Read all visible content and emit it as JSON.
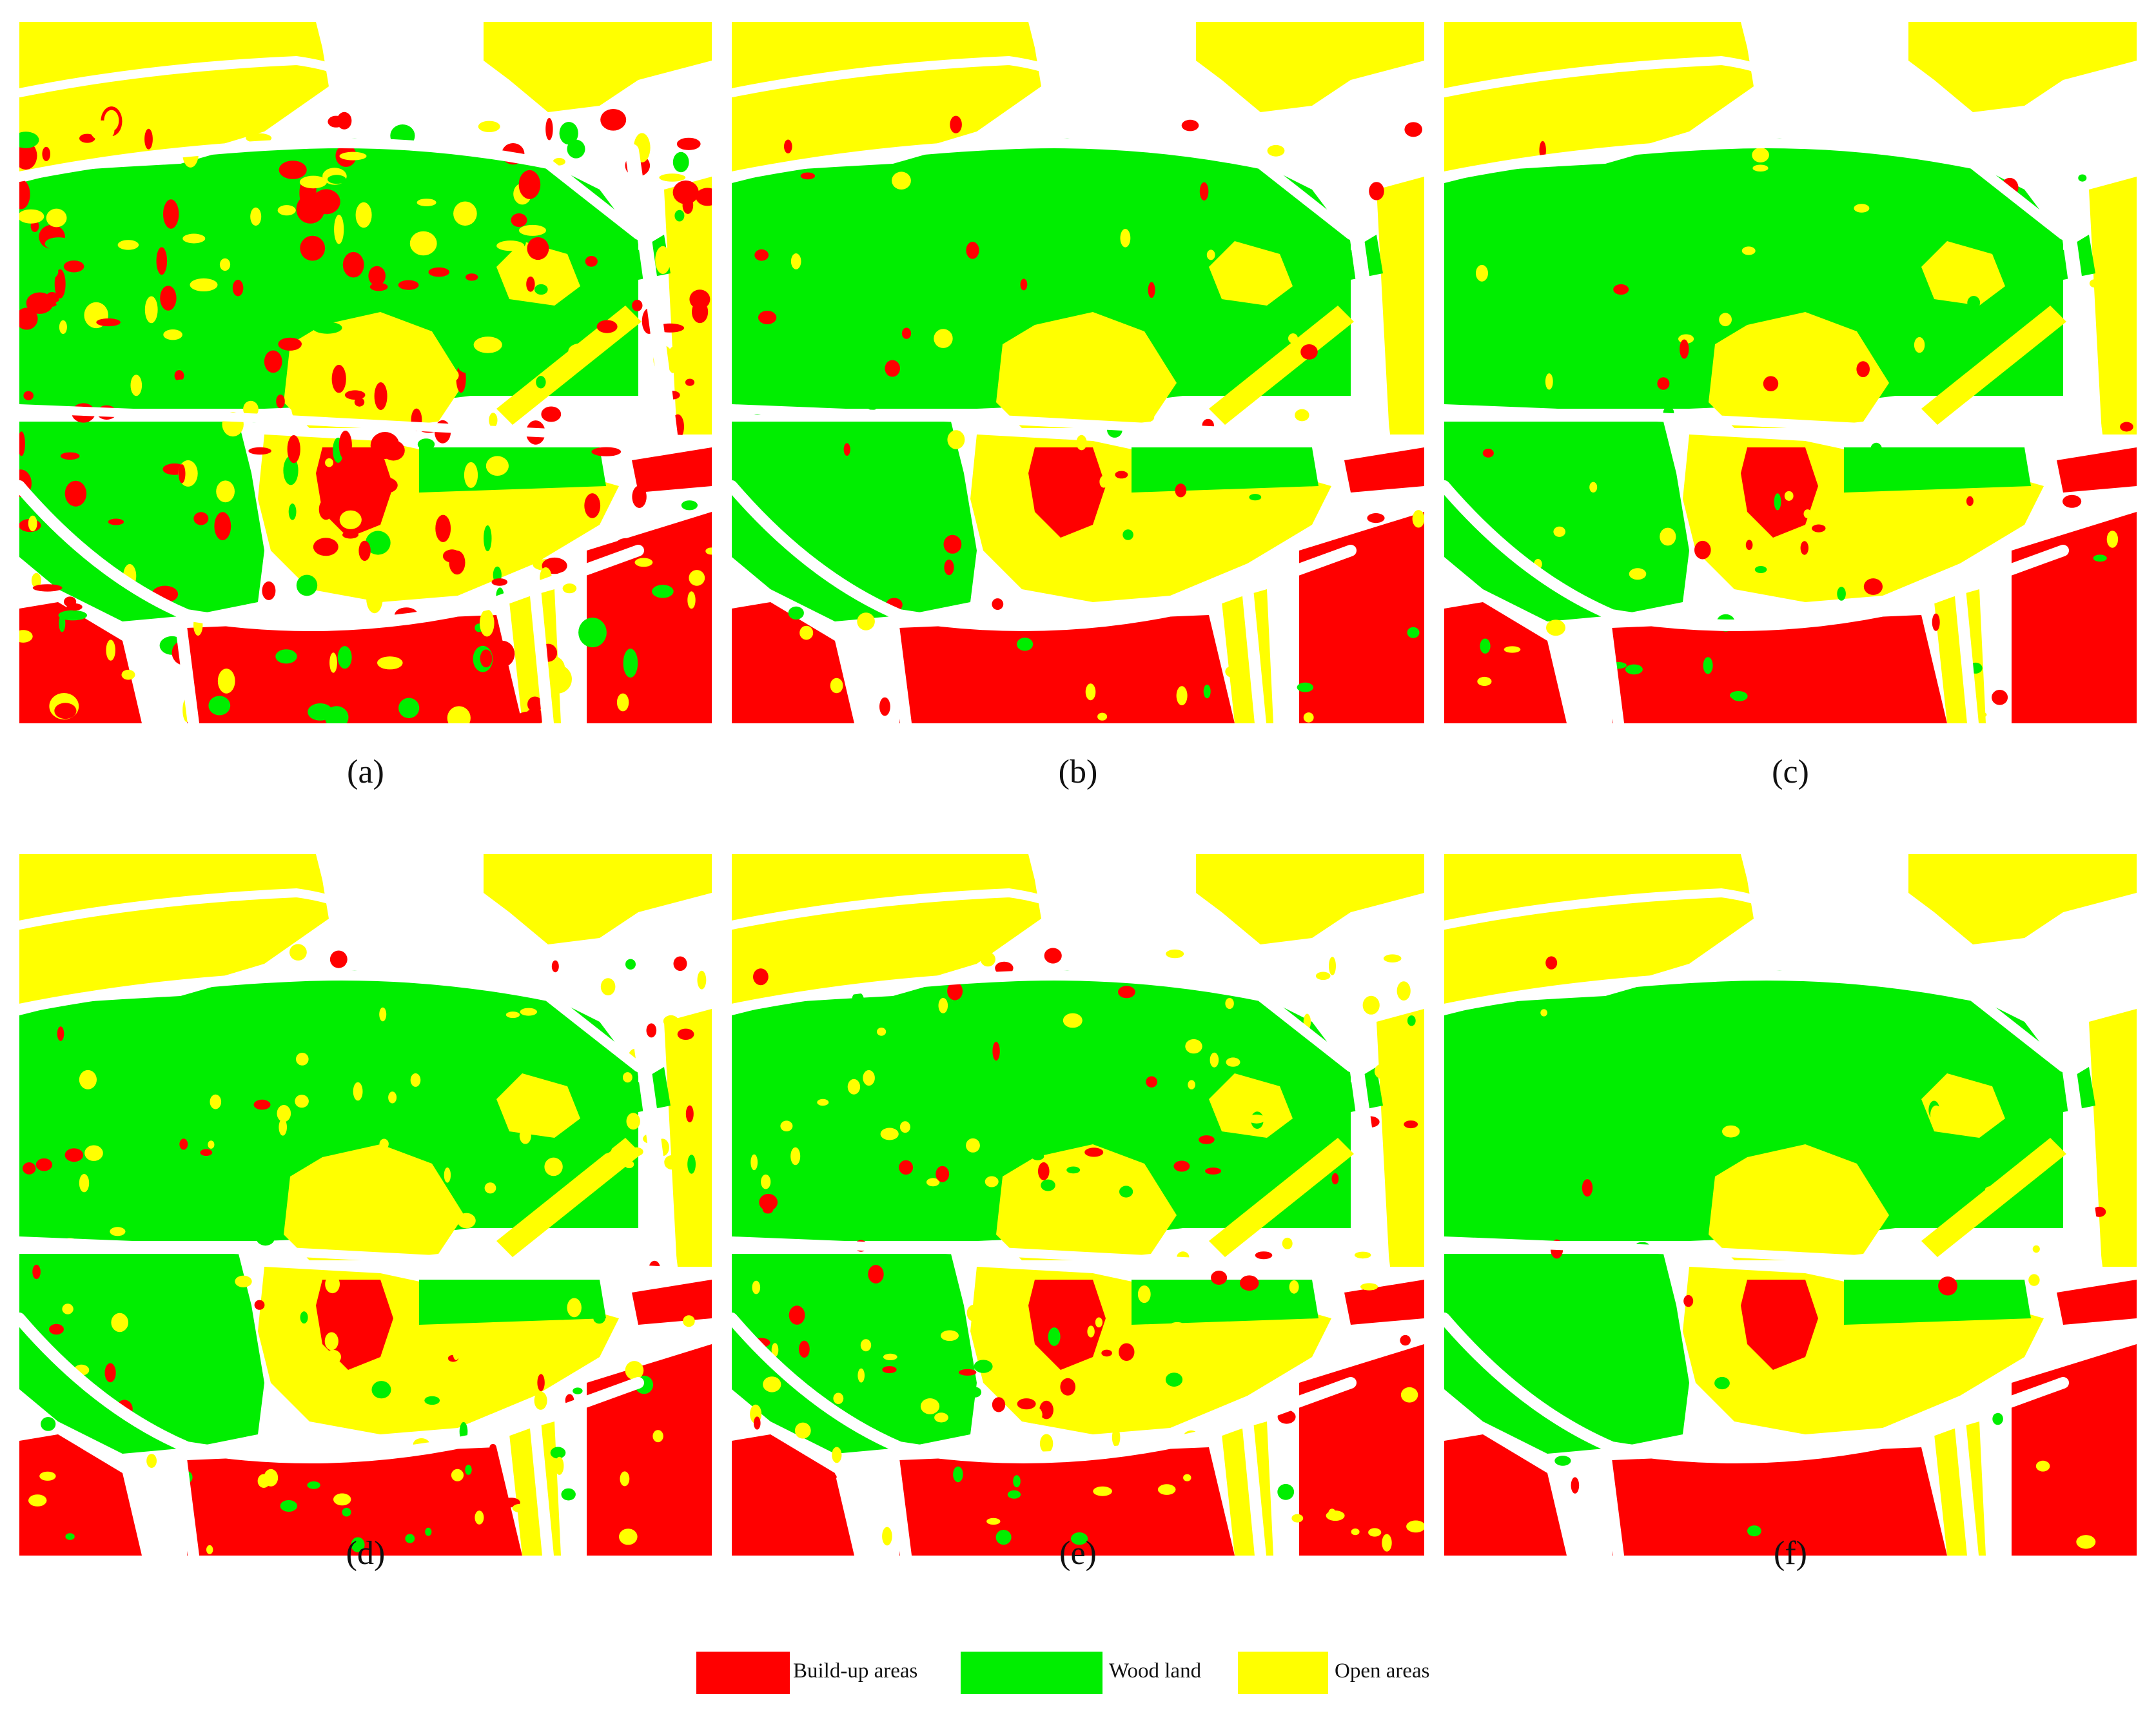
{
  "colors": {
    "build_up": "#ff0000",
    "wood": "#00ee00",
    "open": "#ffff00",
    "road": "#ffffff"
  },
  "panels": [
    {
      "label": "(a)",
      "noise": "high"
    },
    {
      "label": "(b)",
      "noise": "low"
    },
    {
      "label": "(c)",
      "noise": "low"
    },
    {
      "label": "(d)",
      "noise": "medium"
    },
    {
      "label": "(e)",
      "noise": "medium"
    },
    {
      "label": "(f)",
      "noise": "very-low"
    }
  ],
  "legend": [
    {
      "label": "Build-up areas",
      "color": "#ff0000"
    },
    {
      "label": "Wood land",
      "color": "#00ee00"
    },
    {
      "label": "Open areas",
      "color": "#ffff00"
    }
  ]
}
